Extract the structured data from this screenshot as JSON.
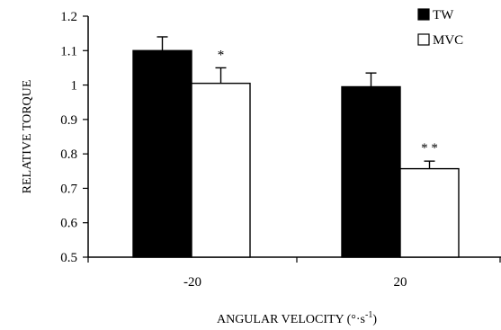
{
  "chart_data": {
    "type": "bar",
    "categories": [
      "-20",
      "20"
    ],
    "series": [
      {
        "name": "TW",
        "values": [
          1.1,
          0.995
        ],
        "errors": [
          0.04,
          0.04
        ],
        "color": "#000000"
      },
      {
        "name": "MVC",
        "values": [
          1.005,
          0.757
        ],
        "errors": [
          0.045,
          0.022
        ],
        "color": "#ffffff"
      }
    ],
    "significance": [
      "*",
      "* *"
    ],
    "xlabel": "ANGULAR VELOCITY (°·s",
    "xlabel_sup": "-1",
    "xlabel_end": ")",
    "ylabel": "RELATIVE  TORQUE",
    "ylim": [
      0.5,
      1.2
    ],
    "yticks": [
      "0.5",
      "0.6",
      "0.7",
      "0.8",
      "0.9",
      "1",
      "1.1",
      "1.2"
    ],
    "legend_position": "top-right",
    "grid": false
  }
}
